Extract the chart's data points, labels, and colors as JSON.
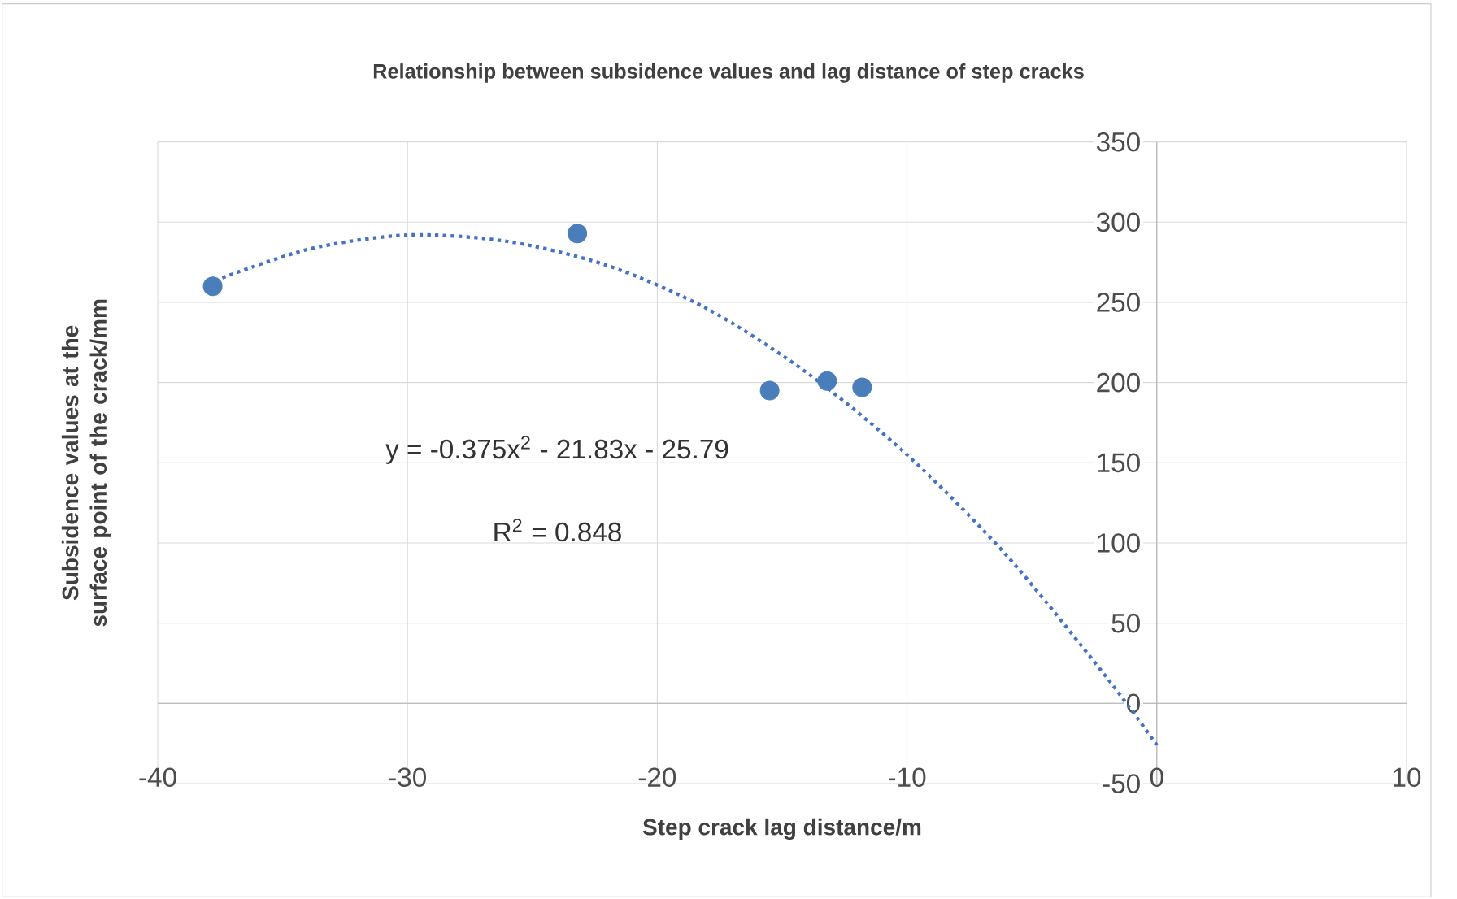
{
  "chart_data": {
    "type": "scatter",
    "title": "Relationship between subsidence values and lag distance of step cracks",
    "xlabel": "Step crack lag distance/m",
    "ylabel": "Subsidence values at the surface point of the crack/mm",
    "xlim": [
      -40,
      10
    ],
    "xticks": [
      -40,
      -30,
      -20,
      -10,
      0,
      10
    ],
    "ylim": [
      -50,
      350
    ],
    "yticks": [
      -50,
      0,
      50,
      100,
      150,
      200,
      250,
      300,
      350
    ],
    "grid": true,
    "series": [
      {
        "marker": "circle",
        "color": "#4a7ebb",
        "x": [
          -37.8,
          -23.2,
          -15.5,
          -13.2,
          -11.8
        ],
        "values": [
          260,
          293,
          195,
          201,
          197
        ]
      },
      {
        "type": "line",
        "color": "#4472c4",
        "line_style": "dotted",
        "marker": "none",
        "x": [
          -38,
          -34,
          -30,
          -26,
          -22,
          -18,
          -14,
          -10,
          -6,
          -2,
          0
        ],
        "values": [
          262,
          283,
          292,
          288,
          273,
          246,
          206,
          155,
          92,
          16,
          -26
        ]
      }
    ],
    "annotations": [
      "y = -0.375x$^{2}$ - 21.83x - 25.79",
      "R$^{2}$ = 0.848"
    ]
  }
}
